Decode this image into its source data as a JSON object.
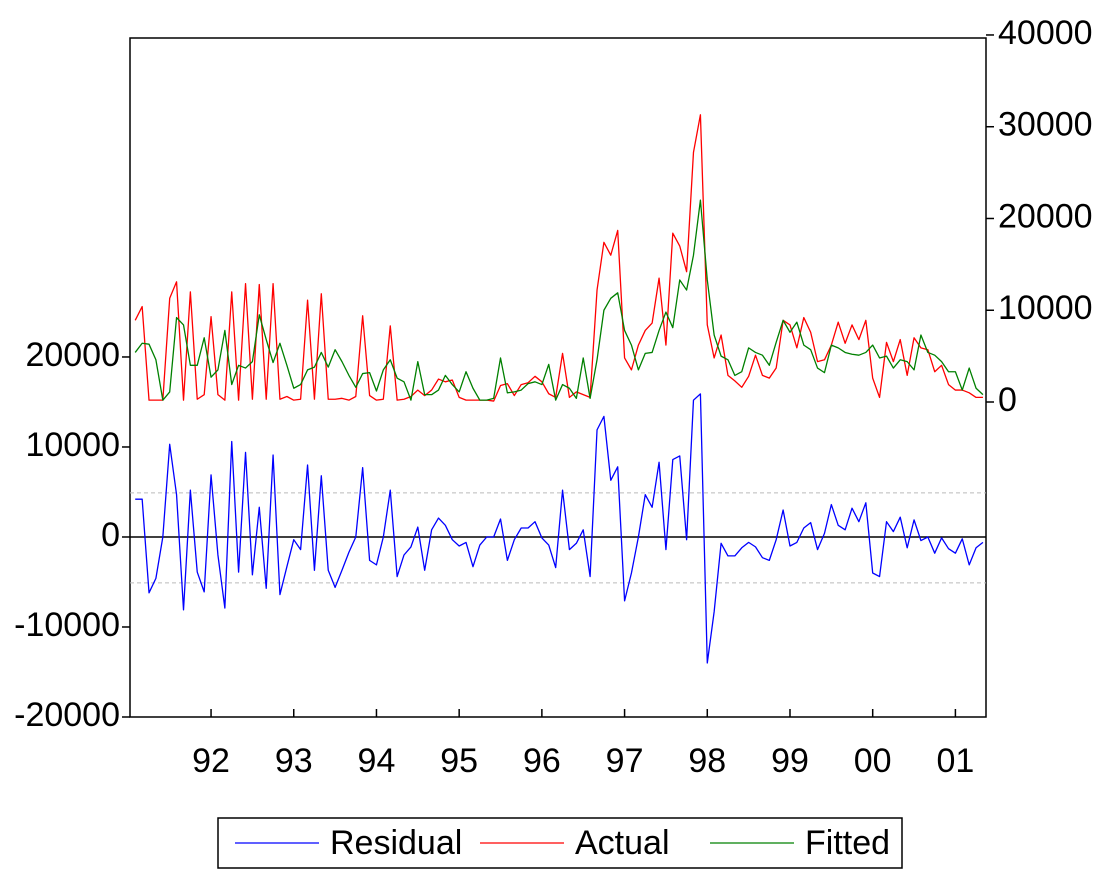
{
  "chart_data": {
    "type": "line",
    "x": [
      1991.083,
      1991.167,
      1991.25,
      1991.333,
      1991.417,
      1991.5,
      1991.583,
      1991.667,
      1991.75,
      1991.833,
      1991.917,
      1992,
      1992.083,
      1992.167,
      1992.25,
      1992.333,
      1992.417,
      1992.5,
      1992.583,
      1992.667,
      1992.75,
      1992.833,
      1992.917,
      1993,
      1993.083,
      1993.167,
      1993.25,
      1993.333,
      1993.417,
      1993.5,
      1993.583,
      1993.667,
      1993.75,
      1993.833,
      1993.917,
      1994,
      1994.083,
      1994.167,
      1994.25,
      1994.333,
      1994.417,
      1994.5,
      1994.583,
      1994.667,
      1994.75,
      1994.833,
      1994.917,
      1995,
      1995.083,
      1995.167,
      1995.25,
      1995.333,
      1995.417,
      1995.5,
      1995.583,
      1995.667,
      1995.75,
      1995.833,
      1995.917,
      1996,
      1996.083,
      1996.167,
      1996.25,
      1996.333,
      1996.417,
      1996.5,
      1996.583,
      1996.667,
      1996.75,
      1996.833,
      1996.917,
      1997,
      1997.083,
      1997.167,
      1997.25,
      1997.333,
      1997.417,
      1997.5,
      1997.583,
      1997.667,
      1997.75,
      1997.833,
      1997.917,
      1998,
      1998.083,
      1998.167,
      1998.25,
      1998.333,
      1998.417,
      1998.5,
      1998.583,
      1998.667,
      1998.75,
      1998.833,
      1998.917,
      1999,
      1999.083,
      1999.167,
      1999.25,
      1999.333,
      1999.417,
      1999.5,
      1999.583,
      1999.667,
      1999.75,
      1999.833,
      1999.917,
      2000,
      2000.083,
      2000.167,
      2000.25,
      2000.333,
      2000.417,
      2000.5,
      2000.583,
      2000.667,
      2000.75,
      2000.833,
      2000.917,
      2001,
      2001.083,
      2001.167,
      2001.25,
      2001.333
    ],
    "xlim": [
      1991.02,
      2001.37
    ],
    "xticks": [
      {
        "value": 1992,
        "label": "92"
      },
      {
        "value": 1993,
        "label": "93"
      },
      {
        "value": 1994,
        "label": "94"
      },
      {
        "value": 1995,
        "label": "95"
      },
      {
        "value": 1996,
        "label": "96"
      },
      {
        "value": 1997,
        "label": "97"
      },
      {
        "value": 1998,
        "label": "98"
      },
      {
        "value": 1999,
        "label": "99"
      },
      {
        "value": 2000,
        "label": "00"
      },
      {
        "value": 2001,
        "label": "01"
      }
    ],
    "ylim": [
      -20000,
      55440
    ],
    "yticks": [
      -20000,
      -10000,
      0,
      10000,
      20000
    ],
    "y2lim": [
      -34330,
      39670
    ],
    "y2ticks": [
      0,
      10000,
      20000,
      30000,
      40000
    ],
    "reference_lines": [
      4900,
      -5100
    ],
    "legend": "bottom",
    "series": [
      {
        "name": "Residual",
        "color": "#0000ff",
        "values": [
          4200,
          4200,
          -6200,
          -4600,
          0,
          10300,
          4700,
          -8100,
          5200,
          -3900,
          -6100,
          6900,
          -2000,
          -7900,
          10600,
          -3900,
          9400,
          -4200,
          3300,
          -5700,
          9100,
          -6400,
          -3300,
          -300,
          -1400,
          8000,
          -3700,
          6800,
          -3700,
          -5600,
          -3700,
          -1700,
          0,
          7700,
          -2600,
          -3100,
          0,
          5200,
          -4400,
          -2000,
          -1100,
          1100,
          -3700,
          800,
          2100,
          1300,
          -300,
          -1000,
          -600,
          -3300,
          -900,
          0,
          0,
          2000,
          -2600,
          -300,
          1000,
          1000,
          1700,
          -100,
          -900,
          -3400,
          5200,
          -1400,
          -700,
          800,
          -4400,
          11900,
          13400,
          6300,
          7800,
          -7100,
          -4000,
          0,
          4700,
          3300,
          8300,
          -1400,
          8600,
          9000,
          -300,
          15200,
          15900,
          -14000,
          -8300,
          -700,
          -2100,
          -2100,
          -1200,
          -600,
          -1100,
          -2300,
          -2600,
          -300,
          3000,
          -1000,
          -600,
          1000,
          1600,
          -1400,
          400,
          3600,
          1300,
          800,
          3200,
          1700,
          3800,
          -4000,
          -4400,
          1700,
          600,
          2200,
          -1200,
          1900,
          -400,
          0,
          -1800,
          -100,
          -1300,
          -1800,
          -200,
          -3100,
          -1200,
          -600
        ]
      },
      {
        "name": "Actual",
        "color": "#ff0000",
        "axis": "y2",
        "values": [
          8900,
          10400,
          200,
          200,
          200,
          11300,
          13100,
          200,
          12000,
          300,
          800,
          9300,
          800,
          200,
          12000,
          200,
          12900,
          300,
          12800,
          300,
          12900,
          300,
          600,
          200,
          300,
          11100,
          300,
          11800,
          300,
          300,
          400,
          200,
          600,
          9400,
          700,
          200,
          300,
          8300,
          200,
          300,
          600,
          1300,
          700,
          1300,
          2500,
          2200,
          2400,
          500,
          200,
          200,
          200,
          200,
          100,
          1800,
          2000,
          700,
          1900,
          2100,
          2800,
          2200,
          900,
          500,
          5300,
          500,
          1100,
          800,
          500,
          12200,
          17400,
          16000,
          18700,
          4800,
          3500,
          6200,
          7800,
          8600,
          13500,
          6200,
          18400,
          17000,
          14200,
          27200,
          31300,
          8400,
          4800,
          7300,
          2900,
          2300,
          1600,
          2800,
          5100,
          2900,
          2600,
          3700,
          8900,
          8400,
          5900,
          9200,
          7600,
          4400,
          4600,
          6200,
          8700,
          6400,
          8400,
          6800,
          8900,
          2600,
          500,
          6500,
          4400,
          6800,
          2900,
          7000,
          5900,
          5700,
          3300,
          4000,
          1900,
          1300,
          1300,
          1000,
          500,
          500
        ]
      },
      {
        "name": "Fitted",
        "color": "#008000",
        "axis": "y2",
        "values": [
          5400,
          6400,
          6300,
          4600,
          200,
          1100,
          9200,
          8400,
          4000,
          4000,
          7000,
          2700,
          3500,
          7800,
          1900,
          4000,
          3700,
          4400,
          9500,
          6800,
          4300,
          6400,
          4000,
          1500,
          1900,
          3500,
          3800,
          5400,
          3800,
          5700,
          4400,
          2900,
          1600,
          3100,
          3200,
          1200,
          3500,
          4600,
          2600,
          2200,
          200,
          4400,
          800,
          800,
          1300,
          2900,
          1900,
          1100,
          3300,
          1500,
          200,
          200,
          400,
          4800,
          1000,
          1100,
          1300,
          2000,
          2200,
          1900,
          4100,
          200,
          1900,
          1500,
          400,
          4800,
          400,
          4600,
          10000,
          11300,
          11900,
          7800,
          6200,
          3500,
          5300,
          5400,
          7800,
          9800,
          8100,
          13300,
          12200,
          16000,
          22000,
          13300,
          7300,
          5000,
          4600,
          2900,
          3300,
          5900,
          5400,
          5100,
          4000,
          6500,
          8900,
          7600,
          8700,
          6200,
          5700,
          3700,
          3200,
          6200,
          5900,
          5400,
          5200,
          5100,
          5400,
          6200,
          4800,
          5000,
          3700,
          4600,
          4400,
          3500,
          7300,
          5400,
          5100,
          4400,
          3300,
          3300,
          1300,
          3700,
          1500,
          800
        ]
      }
    ]
  }
}
